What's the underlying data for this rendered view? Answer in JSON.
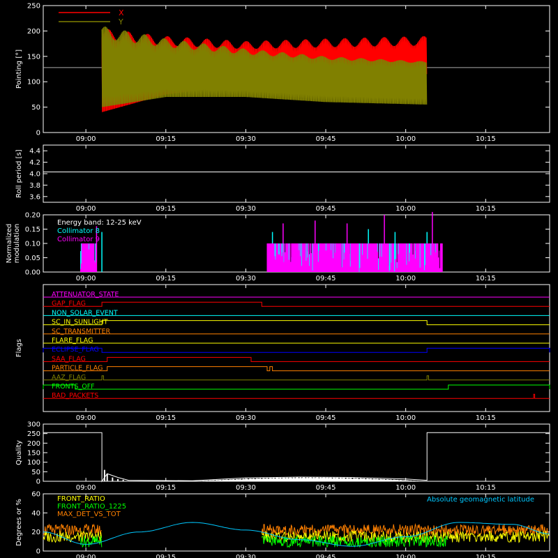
{
  "chart_data": [
    {
      "id": "pointing",
      "type": "line",
      "ylabel": "Pointing [°]",
      "ylim": [
        0,
        250
      ],
      "yticks": [
        0,
        50,
        100,
        150,
        200,
        250
      ],
      "x_unit": "time HH:MM",
      "xlim": [
        "08:52",
        "10:27"
      ],
      "xticks": [
        "09:00",
        "09:15",
        "09:30",
        "09:45",
        "10:00",
        "10:15"
      ],
      "reference_level": 128,
      "data_window": [
        "09:03",
        "10:04"
      ],
      "legend_position": "top-left",
      "series": [
        {
          "name": "X",
          "color": "#ff0000",
          "envelope_time": [
            "09:03",
            "09:15",
            "09:30",
            "09:45",
            "10:04"
          ],
          "envelope_max": [
            205,
            190,
            180,
            185,
            190
          ],
          "envelope_min": [
            40,
            75,
            95,
            110,
            115
          ]
        },
        {
          "name": "Y",
          "color": "#808000",
          "envelope_time": [
            "09:03",
            "09:15",
            "09:30",
            "09:45",
            "10:04"
          ],
          "envelope_max": [
            210,
            185,
            165,
            150,
            140
          ],
          "envelope_min": [
            50,
            70,
            70,
            60,
            55
          ]
        }
      ]
    },
    {
      "id": "roll",
      "type": "line",
      "ylabel": "Roll period [s]",
      "ylim": [
        3.5,
        4.5
      ],
      "yticks": [
        "3.6",
        "3.8",
        "4.0",
        "4.2",
        "4.4"
      ],
      "xticks": [
        "09:00",
        "09:15",
        "09:30",
        "09:45",
        "10:00",
        "10:15"
      ],
      "series": [
        {
          "name": "",
          "color": "#ffffff",
          "x": [
            "08:52",
            "10:27"
          ],
          "y": [
            4.03,
            4.03
          ]
        }
      ]
    },
    {
      "id": "modulation",
      "type": "bar",
      "ylabel": "Normalized modulation",
      "ylim": [
        0,
        0.2
      ],
      "yticks": [
        "0.00",
        "0.05",
        "0.10",
        "0.15",
        "0.20"
      ],
      "xticks": [
        "09:00",
        "09:15",
        "09:30",
        "09:45",
        "10:00",
        "10:15"
      ],
      "annotation": "Energy band: 12-25 keV",
      "legend_position": "top-left",
      "series": [
        {
          "name": "Collimator 8",
          "color": "#00ffff",
          "segments": [
            [
              "08:59",
              "09:02"
            ],
            [
              "09:34",
              "10:06"
            ]
          ],
          "level": 0.1,
          "spikes": [
            {
              "t": "09:03",
              "v": 0.14
            },
            {
              "t": "09:35",
              "v": 0.14
            },
            {
              "t": "09:53",
              "v": 0.15
            },
            {
              "t": "09:58",
              "v": 0.14
            },
            {
              "t": "10:04",
              "v": 0.14
            }
          ]
        },
        {
          "name": "Collimator 9",
          "color": "#ff00ff",
          "segments": [
            [
              "08:59",
              "09:02"
            ],
            [
              "09:34",
              "10:07"
            ]
          ],
          "level": 0.1,
          "spikes": [
            {
              "t": "09:02",
              "v": 0.16
            },
            {
              "t": "09:37",
              "v": 0.17
            },
            {
              "t": "09:43",
              "v": 0.18
            },
            {
              "t": "09:49",
              "v": 0.17
            },
            {
              "t": "09:56",
              "v": 0.2
            },
            {
              "t": "10:05",
              "v": 0.21
            }
          ]
        }
      ]
    },
    {
      "id": "flags",
      "type": "line",
      "ylabel": "Flags",
      "xticks": [
        "09:00",
        "09:15",
        "09:30",
        "09:45",
        "10:00",
        "10:15"
      ],
      "series": [
        {
          "name": "ATTENUATOR_STATE",
          "color": "#ff00ff",
          "high": []
        },
        {
          "name": "GAP_FLAG",
          "color": "#ff0000",
          "high": [
            [
              "09:03",
              "09:33"
            ]
          ]
        },
        {
          "name": "NON_SOLAR_EVENT",
          "color": "#00ffff",
          "high": []
        },
        {
          "name": "SC_IN_SUNLIGHT",
          "color": "#ffff00",
          "high": [
            [
              "09:03",
              "10:04"
            ]
          ]
        },
        {
          "name": "SC_TRANSMITTER",
          "color": "#ff8000",
          "high": []
        },
        {
          "name": "FLARE_FLAG",
          "color": "#ffff00",
          "high": []
        },
        {
          "name": "ECLIPSE_FLAG",
          "color": "#0000ff",
          "high": [
            [
              "08:52",
              "09:03"
            ],
            [
              "10:04",
              "10:27"
            ]
          ]
        },
        {
          "name": "SAA_FLAG",
          "color": "#ff0000",
          "high": [
            [
              "09:04",
              "09:31"
            ]
          ]
        },
        {
          "name": "PARTICLE_FLAG",
          "color": "#ff8000",
          "high": [
            [
              "09:04",
              "09:34"
            ],
            [
              "09:34.5",
              "09:35"
            ]
          ]
        },
        {
          "name": "AAZ_FLAG",
          "color": "#808000",
          "high": [
            [
              "09:03",
              "09:03.3"
            ],
            [
              "10:04",
              "10:04.3"
            ]
          ]
        },
        {
          "name": "FRONTS_OFF",
          "color": "#00ff00",
          "high": [
            [
              "08:52",
              "08:58"
            ],
            [
              "10:08",
              "10:27"
            ]
          ]
        },
        {
          "name": "BAD_PACKETS",
          "color": "#ff0000",
          "high": [
            [
              "10:24",
              "10:24.2"
            ]
          ]
        }
      ]
    },
    {
      "id": "quality",
      "type": "area",
      "ylabel": "Quality",
      "ylim": [
        0,
        300
      ],
      "yticks": [
        0,
        50,
        100,
        150,
        200,
        250,
        300
      ],
      "xticks": [
        "09:00",
        "09:15",
        "09:30",
        "09:45",
        "10:00",
        "10:15"
      ],
      "series": [
        {
          "name": "",
          "color": "#ffffff",
          "x": [
            "08:52",
            "09:03",
            "09:03",
            "09:04",
            "09:06",
            "09:08",
            "09:20",
            "09:30",
            "09:40",
            "09:50",
            "10:00",
            "10:04",
            "10:04",
            "10:27"
          ],
          "y": [
            255,
            255,
            0,
            40,
            20,
            5,
            3,
            18,
            22,
            20,
            12,
            5,
            255,
            255
          ]
        }
      ]
    },
    {
      "id": "ratio",
      "type": "line",
      "ylabel": "Degrees or %",
      "ylim": [
        0,
        60
      ],
      "yticks": [
        0,
        20,
        40,
        60
      ],
      "xticks": [
        "09:00",
        "09:15",
        "09:30",
        "09:45",
        "10:00",
        "10:15"
      ],
      "annotation": "Absolute geomagnetic latitude",
      "legend_position": "top-left",
      "series": [
        {
          "name": "FRONT_RATIO",
          "color": "#ffff00",
          "segments": [
            [
              "08:52",
              "09:03"
            ],
            [
              "09:33",
              "10:27"
            ]
          ],
          "level": 15
        },
        {
          "name": "FRONT_RATIO_1225",
          "color": "#00ff00",
          "segments": [
            [
              "08:59",
              "09:03"
            ],
            [
              "09:33",
              "10:08"
            ]
          ],
          "level": 10
        },
        {
          "name": "MAX_DET_VS_TOT",
          "color": "#ff8000",
          "segments": [
            [
              "08:52",
              "09:03"
            ],
            [
              "09:33",
              "10:27"
            ]
          ],
          "level": 22
        },
        {
          "name": "Absolute geomagnetic latitude",
          "color": "#00c8ff",
          "x": [
            "08:52",
            "09:00",
            "09:10",
            "09:20",
            "09:30",
            "09:40",
            "09:50",
            "10:00",
            "10:10",
            "10:20",
            "10:27"
          ],
          "y": [
            20,
            7,
            20,
            30,
            22,
            12,
            5,
            15,
            30,
            28,
            18
          ]
        }
      ]
    }
  ]
}
